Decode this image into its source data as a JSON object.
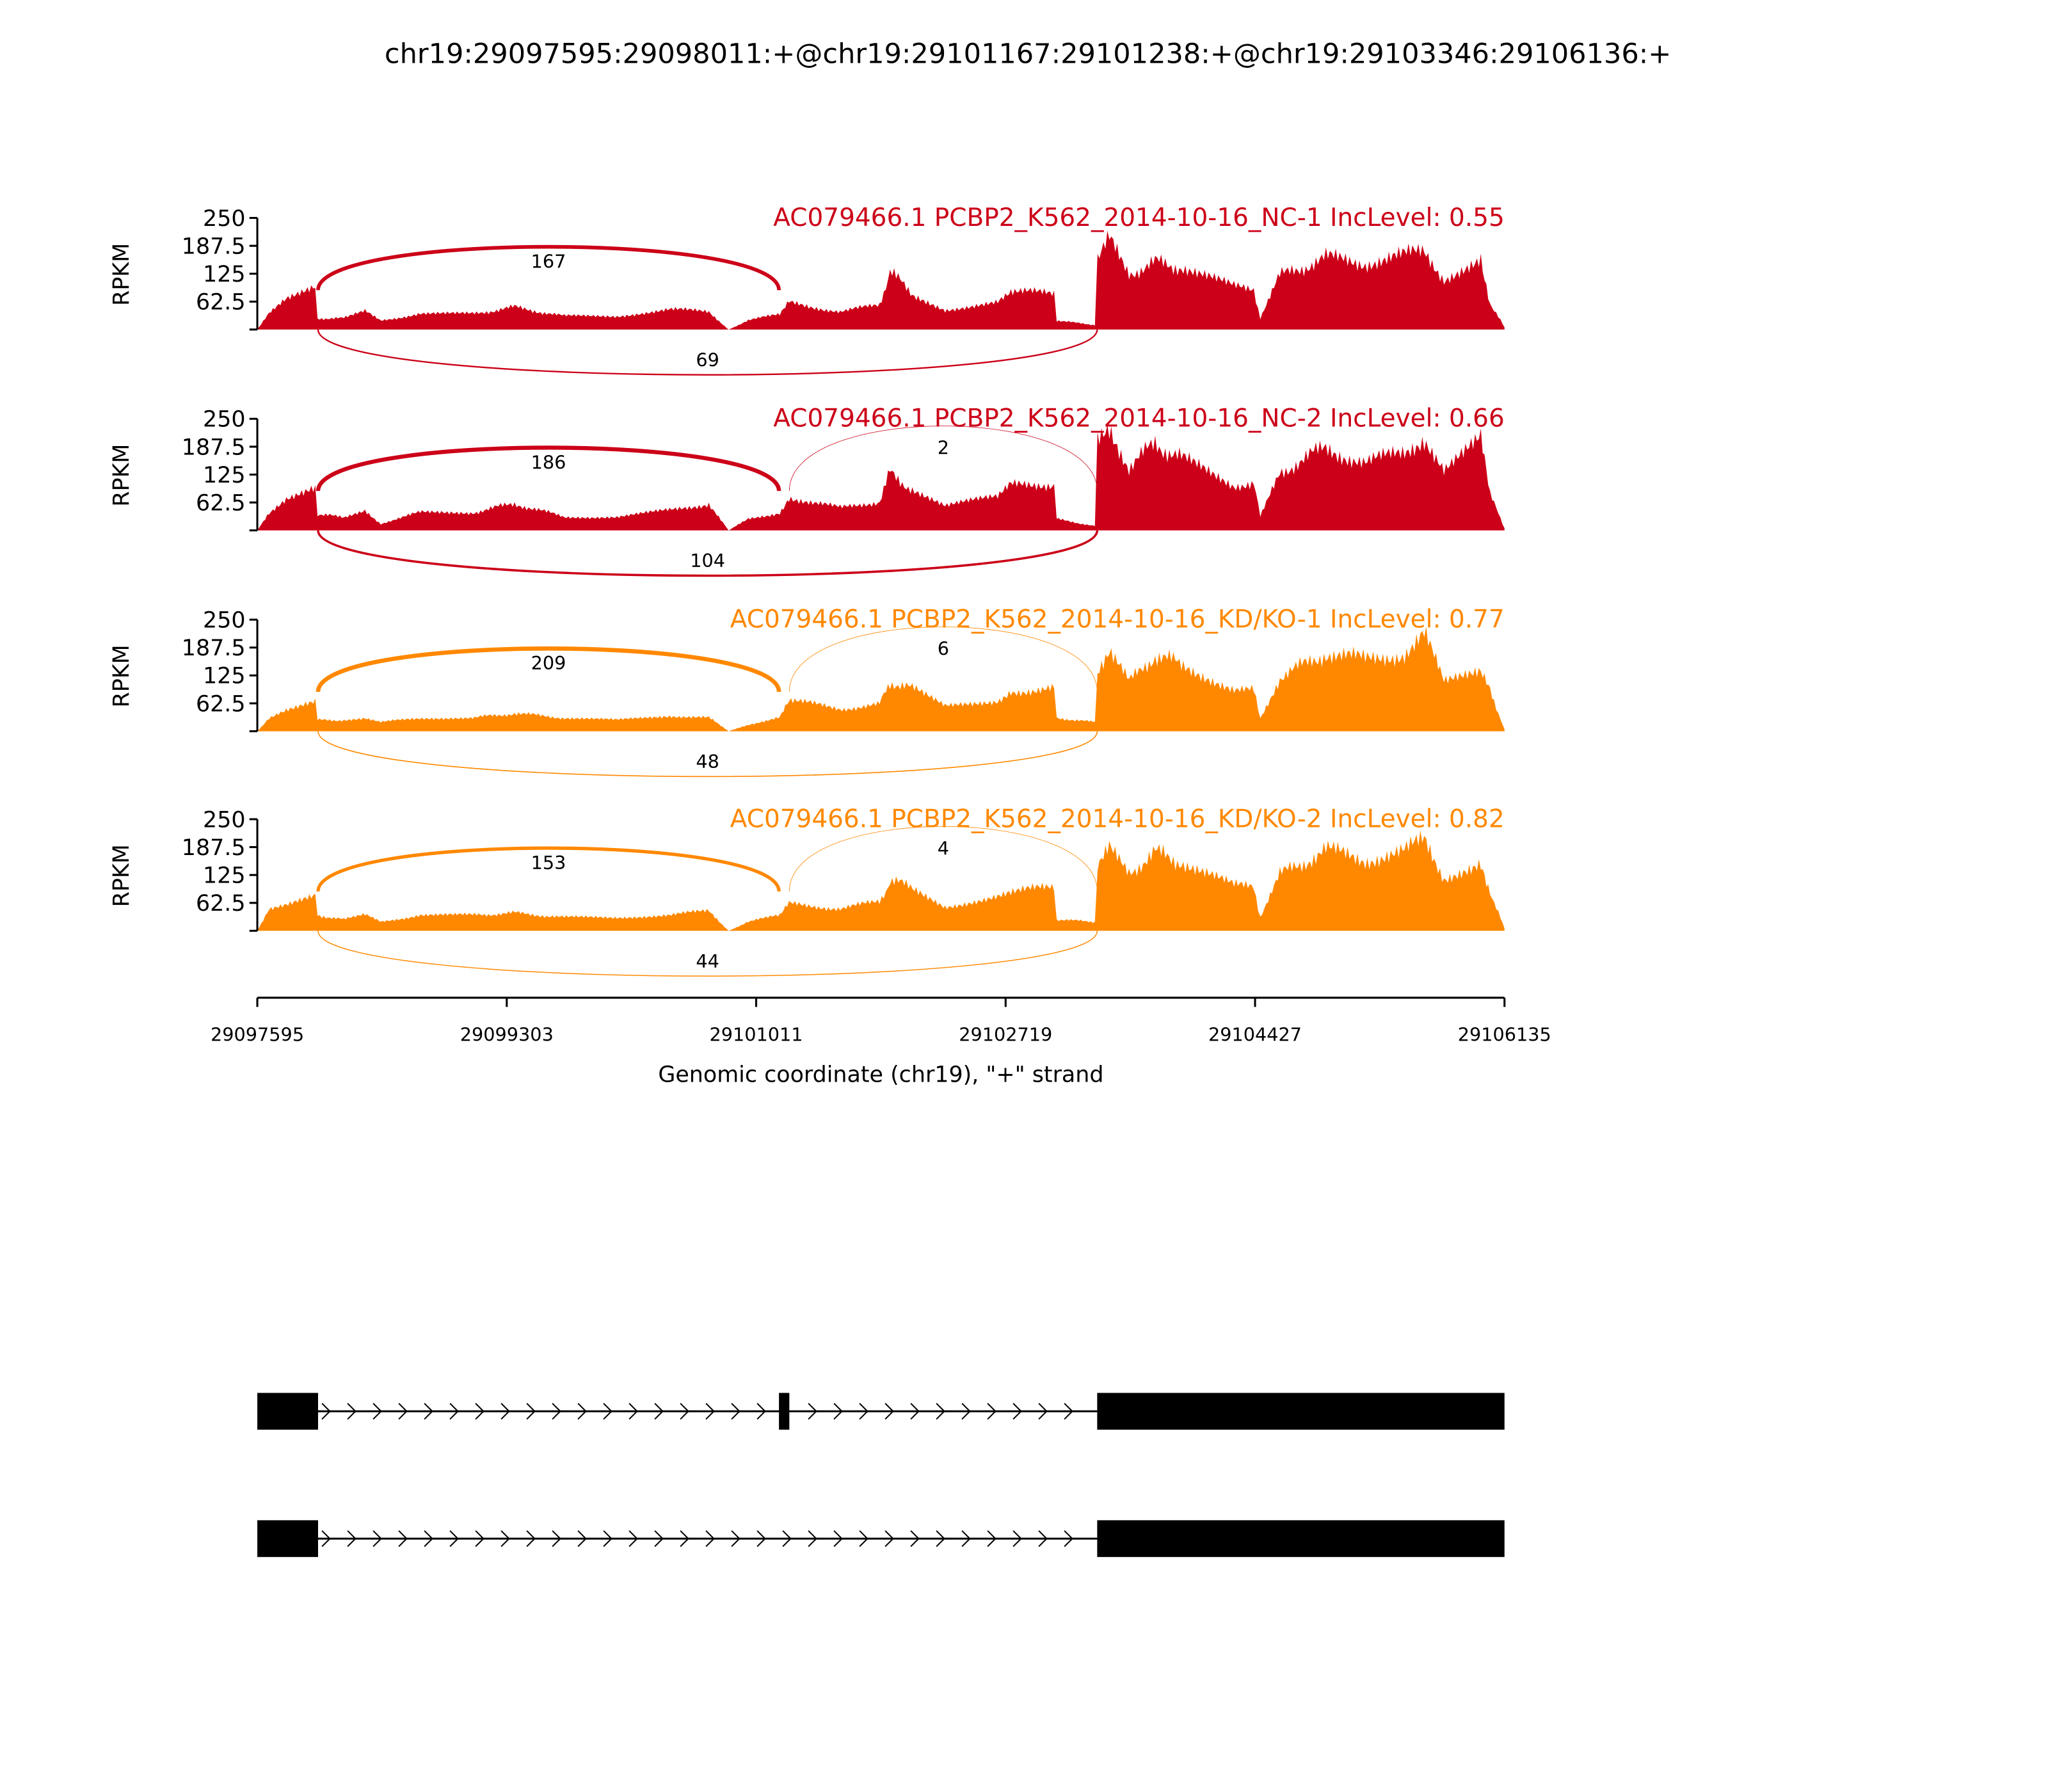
{
  "chart_data": {
    "type": "area",
    "title": "chr19:29097595:29098011:+@chr19:29101167:29101238:+@chr19:29103346:29106136:+",
    "xlabel": "Genomic coordinate (chr19), \"+\" strand",
    "ylabel": "RPKM",
    "xlim": [
      29097595,
      29106135
    ],
    "ylim": [
      0,
      250
    ],
    "yticks": [
      "250",
      "187.5",
      "125",
      "62.5"
    ],
    "ytick_values": [
      250,
      187.5,
      125,
      62.5
    ],
    "xticks": [
      "29097595",
      "29099303",
      "29101011",
      "29102719",
      "29104427",
      "29106135"
    ],
    "xtick_values": [
      29097595,
      29099303,
      29101011,
      29102719,
      29104427,
      29106135
    ],
    "coverage_x": [
      29097595,
      29097676,
      29097793,
      29097991,
      29098008,
      29098188,
      29098332,
      29098440,
      29098710,
      29099069,
      29099357,
      29099698,
      29100058,
      29100418,
      29100687,
      29100822,
      29100957,
      29101173,
      29101236,
      29101586,
      29101856,
      29101928,
      29102081,
      29102305,
      29102665,
      29102755,
      29103051,
      29103069,
      29103330,
      29103348,
      29103429,
      29103564,
      29103743,
      29103923,
      29104283,
      29104418,
      29104463,
      29104597,
      29104912,
      29105182,
      29105451,
      29105586,
      29105721,
      29105973,
      29106036,
      29106135
    ],
    "exons": {
      "exon1": [
        29097595,
        29098011
      ],
      "exon2": [
        29101167,
        29101238
      ],
      "exon3": [
        29103346,
        29106136
      ]
    },
    "series": [
      {
        "name": "AC079466.1 PCBP2_K562_2014-10-16_NC-1 IncLevel: 0.55",
        "color": "#cc0018",
        "coverage": [
          0,
          35,
          65,
          90,
          25,
          25,
          40,
          20,
          35,
          35,
          50,
          30,
          30,
          45,
          40,
          0,
          20,
          35,
          60,
          40,
          55,
          130,
          80,
          45,
          60,
          85,
          80,
          20,
          10,
          150,
          200,
          125,
          150,
          140,
          95,
          90,
          25,
          120,
          160,
          150,
          165,
          175,
          115,
          160,
          60,
          5
        ],
        "junctions": [
          {
            "from": 29098011,
            "to": 29101167,
            "count": "167",
            "side": "above"
          },
          {
            "from": 29098011,
            "to": 29103346,
            "count": "69",
            "side": "below"
          }
        ]
      },
      {
        "name": "AC079466.1 PCBP2_K562_2014-10-16_NC-2 IncLevel: 0.66",
        "color": "#cc0018",
        "coverage": [
          0,
          40,
          70,
          100,
          35,
          30,
          45,
          15,
          40,
          40,
          60,
          30,
          30,
          45,
          60,
          0,
          25,
          40,
          75,
          50,
          65,
          130,
          90,
          55,
          75,
          100,
          105,
          25,
          10,
          200,
          235,
          140,
          195,
          160,
          100,
          110,
          30,
          130,
          185,
          150,
          175,
          210,
          130,
          200,
          80,
          5
        ],
        "junctions": [
          {
            "from": 29098011,
            "to": 29101167,
            "count": "186",
            "side": "above"
          },
          {
            "from": 29101238,
            "to": 29103346,
            "count": "2",
            "side": "above"
          },
          {
            "from": 29098011,
            "to": 29103346,
            "count": "104",
            "side": "below"
          }
        ]
      },
      {
        "name": "AC079466.1 PCBP2_K562_2014-10-16_KD/KO-1 IncLevel: 0.77",
        "color": "#ff8800",
        "coverage": [
          0,
          30,
          50,
          70,
          25,
          25,
          30,
          20,
          30,
          30,
          40,
          30,
          25,
          35,
          30,
          0,
          15,
          30,
          70,
          50,
          60,
          110,
          95,
          55,
          70,
          90,
          95,
          30,
          20,
          140,
          185,
          110,
          170,
          150,
          95,
          90,
          30,
          120,
          175,
          160,
          175,
          215,
          110,
          140,
          90,
          5
        ],
        "junctions": [
          {
            "from": 29098011,
            "to": 29101167,
            "count": "209",
            "side": "above"
          },
          {
            "from": 29101238,
            "to": 29103346,
            "count": "6",
            "side": "above"
          },
          {
            "from": 29098011,
            "to": 29103346,
            "count": "48",
            "side": "below"
          }
        ]
      },
      {
        "name": "AC079466.1 PCBP2_K562_2014-10-16_KD/KO-2 IncLevel: 0.82",
        "color": "#ff8800",
        "coverage": [
          0,
          45,
          55,
          75,
          35,
          25,
          35,
          20,
          35,
          35,
          40,
          30,
          30,
          35,
          45,
          0,
          20,
          35,
          60,
          50,
          65,
          110,
          100,
          55,
          75,
          90,
          95,
          25,
          20,
          140,
          180,
          130,
          175,
          155,
          100,
          100,
          30,
          125,
          180,
          160,
          175,
          205,
          120,
          155,
          90,
          5
        ],
        "junctions": [
          {
            "from": 29098011,
            "to": 29101167,
            "count": "153",
            "side": "above"
          },
          {
            "from": 29101238,
            "to": 29103346,
            "count": "4",
            "side": "above"
          },
          {
            "from": 29098011,
            "to": 29103346,
            "count": "44",
            "side": "below"
          }
        ]
      }
    ],
    "transcripts": [
      {
        "exons": [
          [
            29097595,
            29098011
          ],
          [
            29101167,
            29101238
          ],
          [
            29103346,
            29106136
          ]
        ]
      },
      {
        "exons": [
          [
            29097595,
            29098011
          ],
          [
            29103346,
            29106136
          ]
        ]
      }
    ]
  }
}
